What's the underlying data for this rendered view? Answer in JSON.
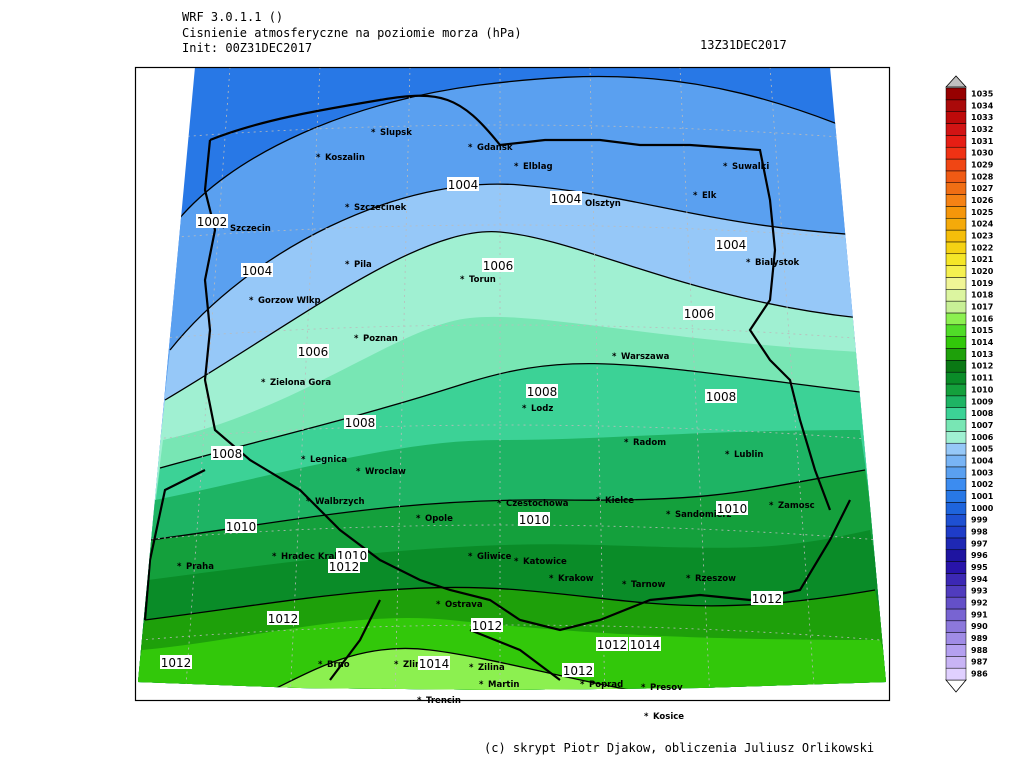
{
  "header": {
    "model": "WRF 3.0.1.1 ()",
    "field": "Cisnienie atmosferyczne na poziomie morza (hPa)",
    "init": "Init: 00Z31DEC2017",
    "valid": "13Z31DEC2017"
  },
  "cities": [
    "Slupsk",
    "Gdansk",
    "Koszalin",
    "Elblag",
    "Suwalki",
    "Elk",
    "Olsztyn",
    "Szczecinek",
    "Szczecin",
    "Bialystok",
    "Pila",
    "Torun",
    "Gorzow Wlkp",
    "Poznan",
    "Warszawa",
    "Zielona Gora",
    "Lodz",
    "Radom",
    "Legnica",
    "Lublin",
    "Wroclaw",
    "Walbrzych",
    "Czestochowa",
    "Kielce",
    "Opole",
    "Sandomierz",
    "Zamosc",
    "Hradec Kralove",
    "Praha",
    "Gliwice",
    "Katowice",
    "Krakow",
    "Tarnow",
    "Rzeszow",
    "Ostrava",
    "Brno",
    "Zlin",
    "Zilina",
    "Martin",
    "Poprad",
    "Presov",
    "Trencin",
    "Kosice"
  ],
  "isobar_labels": [
    1002,
    1004,
    1004,
    1004,
    1004,
    1006,
    1006,
    1006,
    1008,
    1008,
    1008,
    1008,
    1010,
    1010,
    1010,
    1010,
    1012,
    1012,
    1012,
    1012,
    1012,
    1012,
    1012,
    1014,
    1014
  ],
  "colorbar": {
    "levels": [
      986,
      987,
      988,
      989,
      990,
      991,
      992,
      993,
      994,
      995,
      996,
      997,
      998,
      999,
      1000,
      1001,
      1002,
      1003,
      1004,
      1005,
      1006,
      1007,
      1008,
      1009,
      1010,
      1011,
      1012,
      1013,
      1014,
      1015,
      1016,
      1017,
      1018,
      1019,
      1020,
      1021,
      1022,
      1023,
      1024,
      1025,
      1026,
      1027,
      1028,
      1029,
      1030,
      1031,
      1032,
      1033,
      1034,
      1035
    ],
    "colors": [
      "#e0d0ff",
      "#c8b4f5",
      "#b4a0f0",
      "#a08ce6",
      "#8c78dc",
      "#7864d2",
      "#6450c8",
      "#503cbe",
      "#3c28b4",
      "#2814aa",
      "#1e14a0",
      "#1e28b4",
      "#1e3cc8",
      "#1e50d2",
      "#1e64dc",
      "#2878e6",
      "#3c8cf0",
      "#5aa0f0",
      "#78b4f5",
      "#96c8f8",
      "#a0f0d2",
      "#78e6b4",
      "#3cd296",
      "#1eb464",
      "#14a03c",
      "#0a8c28",
      "#0a7814",
      "#1ea00a",
      "#32c80a",
      "#50dc28",
      "#8cf050",
      "#c8f096",
      "#dcf5a0",
      "#f0f596",
      "#f5f050",
      "#f5e628",
      "#f5d214",
      "#f5be0a",
      "#f5aa0a",
      "#f5960a",
      "#f58214",
      "#f06e14",
      "#f05a14",
      "#f04614",
      "#f03214",
      "#e61e14",
      "#d21414",
      "#be0a0a",
      "#aa0a0a",
      "#960000"
    ]
  },
  "footer": "(c) skrypt Piotr Djakow, obliczenia Juliusz Orlikowski"
}
